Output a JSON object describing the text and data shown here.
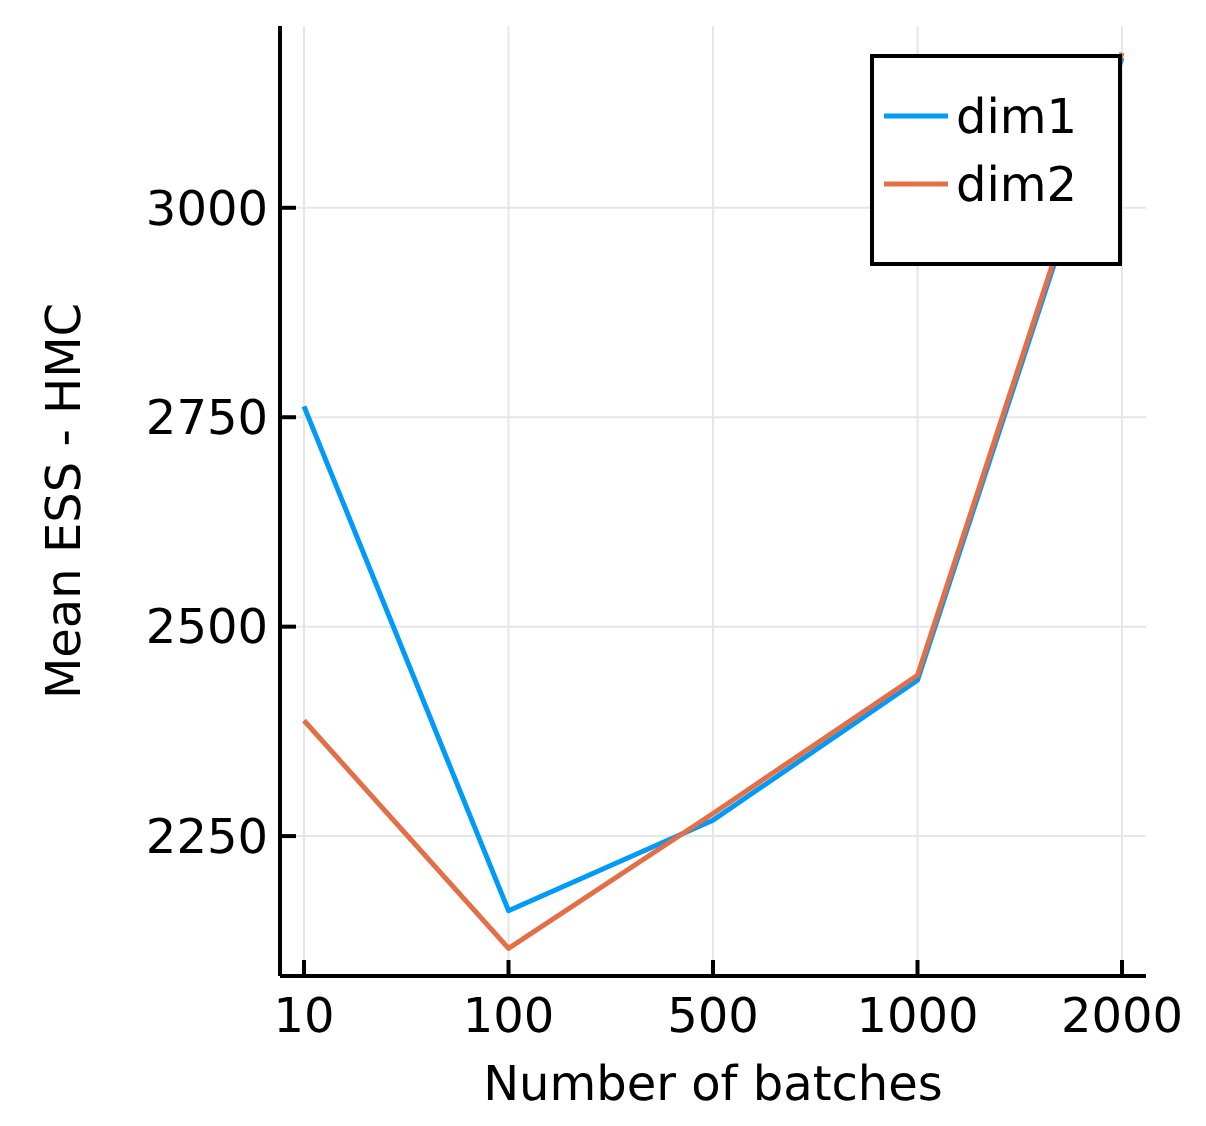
{
  "chart_data": {
    "type": "line",
    "xlabel": "Number of batches",
    "ylabel": "Mean ESS - HMC",
    "categories": [
      "10",
      "100",
      "500",
      "1000",
      "2000"
    ],
    "series": [
      {
        "name": "dim1",
        "color": "#009af9",
        "values": [
          2763,
          2161,
          2269,
          2436,
          3179
        ]
      },
      {
        "name": "dim2",
        "color": "#e26f46",
        "values": [
          2388,
          2116,
          2277,
          2442,
          3185
        ]
      }
    ],
    "ylim": [
      2083,
      3217
    ],
    "yticks": [
      2250,
      2500,
      2750,
      3000
    ],
    "grid": true,
    "legend": "top right",
    "marker": "none",
    "line_style": "solid"
  }
}
